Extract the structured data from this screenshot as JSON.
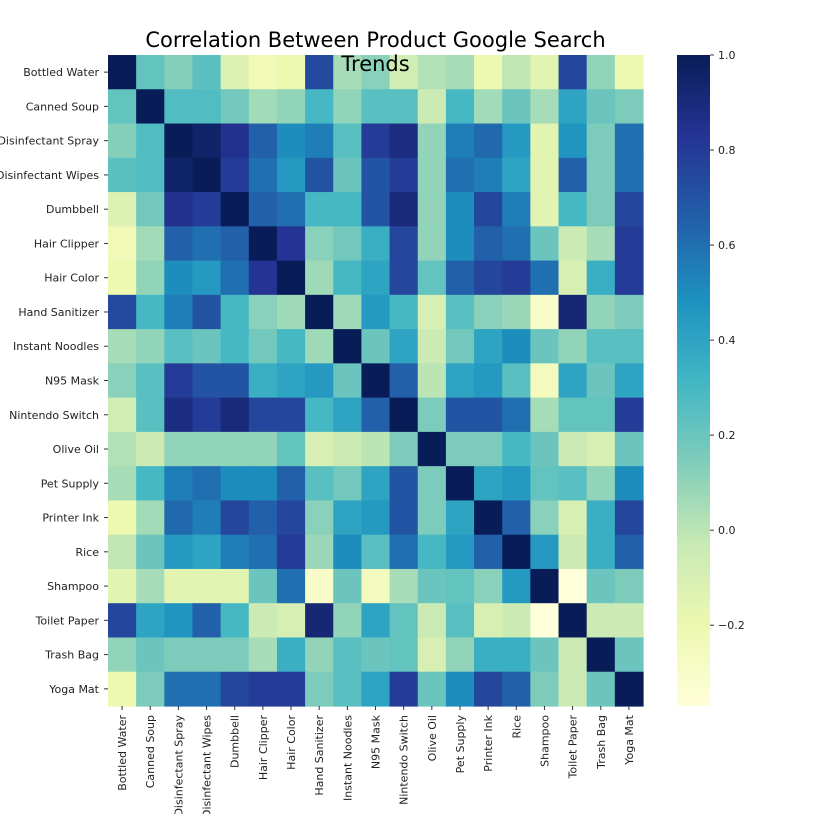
{
  "chart_data": {
    "type": "heatmap",
    "title": "Correlation Between Product Google Search Trends",
    "xlabel": "",
    "ylabel": "",
    "colormap": "YlGnBu",
    "vmin": -0.37,
    "vmax": 1.0,
    "colorbar_ticks": [
      1.0,
      0.8,
      0.6,
      0.4,
      0.2,
      0.0,
      -0.2
    ],
    "colorbar_tick_labels": [
      "1.0",
      "0.8",
      "0.6",
      "0.4",
      "0.2",
      "0.0",
      "−0.2"
    ],
    "labels": [
      "Bottled Water",
      "Canned Soup",
      "Disinfectant Spray",
      "Disinfectant Wipes",
      "Dumbbell",
      "Hair Clipper",
      "Hair Color",
      "Hand Sanitizer",
      "Instant Noodles",
      "N95 Mask",
      "Nintendo Switch",
      "Olive Oil",
      "Pet Supply",
      "Printer Ink",
      "Rice",
      "Shampoo",
      "Toilet Paper",
      "Trash Bag",
      "Yoga Mat"
    ],
    "matrix": [
      [
        1.0,
        0.22,
        0.13,
        0.24,
        -0.12,
        -0.23,
        -0.2,
        0.74,
        0.05,
        0.12,
        -0.07,
        0.02,
        0.05,
        -0.2,
        -0.01,
        -0.15,
        0.75,
        0.1,
        -0.2
      ],
      [
        0.22,
        1.0,
        0.27,
        0.27,
        0.18,
        0.06,
        0.1,
        0.3,
        0.1,
        0.25,
        0.25,
        -0.05,
        0.3,
        0.06,
        0.2,
        0.05,
        0.4,
        0.2,
        0.15
      ],
      [
        0.13,
        0.27,
        1.0,
        0.95,
        0.85,
        0.65,
        0.5,
        0.55,
        0.25,
        0.8,
        0.88,
        0.1,
        0.55,
        0.62,
        0.45,
        -0.15,
        0.47,
        0.15,
        0.6
      ],
      [
        0.24,
        0.27,
        0.95,
        1.0,
        0.8,
        0.6,
        0.45,
        0.7,
        0.2,
        0.7,
        0.8,
        0.1,
        0.6,
        0.55,
        0.4,
        -0.15,
        0.65,
        0.15,
        0.6
      ],
      [
        -0.12,
        0.18,
        0.85,
        0.8,
        1.0,
        0.65,
        0.6,
        0.3,
        0.3,
        0.7,
        0.9,
        0.1,
        0.5,
        0.75,
        0.55,
        -0.15,
        0.3,
        0.15,
        0.75
      ],
      [
        -0.23,
        0.06,
        0.65,
        0.6,
        0.65,
        1.0,
        0.83,
        0.12,
        0.18,
        0.35,
        0.75,
        0.1,
        0.5,
        0.65,
        0.6,
        0.2,
        -0.05,
        0.05,
        0.8
      ],
      [
        -0.2,
        0.1,
        0.5,
        0.45,
        0.6,
        0.83,
        1.0,
        0.07,
        0.3,
        0.4,
        0.75,
        0.22,
        0.65,
        0.75,
        0.8,
        0.6,
        -0.1,
        0.35,
        0.8
      ],
      [
        0.74,
        0.3,
        0.55,
        0.7,
        0.3,
        0.12,
        0.07,
        1.0,
        0.07,
        0.45,
        0.3,
        -0.1,
        0.25,
        0.12,
        0.08,
        -0.3,
        0.92,
        0.1,
        0.15
      ],
      [
        0.05,
        0.1,
        0.25,
        0.2,
        0.3,
        0.18,
        0.3,
        0.07,
        1.0,
        0.2,
        0.4,
        -0.05,
        0.18,
        0.4,
        0.5,
        0.2,
        0.1,
        0.25,
        0.25
      ],
      [
        0.12,
        0.25,
        0.8,
        0.7,
        0.7,
        0.35,
        0.4,
        0.45,
        0.2,
        1.0,
        0.65,
        0.0,
        0.4,
        0.45,
        0.25,
        -0.25,
        0.4,
        0.2,
        0.4
      ],
      [
        -0.07,
        0.25,
        0.88,
        0.8,
        0.9,
        0.75,
        0.75,
        0.3,
        0.4,
        0.65,
        1.0,
        0.15,
        0.7,
        0.7,
        0.6,
        0.05,
        0.22,
        0.22,
        0.8
      ],
      [
        0.02,
        -0.05,
        0.1,
        0.1,
        0.1,
        0.1,
        0.22,
        -0.1,
        -0.05,
        0.0,
        0.15,
        1.0,
        0.15,
        0.15,
        0.3,
        0.2,
        -0.05,
        -0.1,
        0.2
      ],
      [
        0.05,
        0.3,
        0.55,
        0.6,
        0.5,
        0.5,
        0.65,
        0.25,
        0.18,
        0.4,
        0.7,
        0.15,
        1.0,
        0.4,
        0.45,
        0.22,
        0.25,
        0.1,
        0.5
      ],
      [
        -0.2,
        0.06,
        0.62,
        0.55,
        0.75,
        0.65,
        0.75,
        0.12,
        0.4,
        0.45,
        0.7,
        0.15,
        0.4,
        1.0,
        0.65,
        0.12,
        -0.1,
        0.35,
        0.75
      ],
      [
        -0.01,
        0.2,
        0.45,
        0.4,
        0.55,
        0.6,
        0.8,
        0.08,
        0.5,
        0.25,
        0.6,
        0.3,
        0.45,
        0.65,
        1.0,
        0.45,
        -0.05,
        0.35,
        0.65
      ],
      [
        -0.15,
        0.05,
        -0.15,
        -0.15,
        -0.15,
        0.2,
        0.6,
        -0.3,
        0.2,
        -0.25,
        0.05,
        0.2,
        0.22,
        0.12,
        0.45,
        1.0,
        -0.37,
        0.2,
        0.15
      ],
      [
        0.75,
        0.4,
        0.47,
        0.65,
        0.3,
        -0.05,
        -0.1,
        0.92,
        0.1,
        0.4,
        0.22,
        -0.05,
        0.25,
        -0.1,
        -0.05,
        -0.37,
        1.0,
        -0.05,
        -0.05
      ],
      [
        0.1,
        0.2,
        0.15,
        0.15,
        0.15,
        0.05,
        0.35,
        0.1,
        0.25,
        0.2,
        0.22,
        -0.1,
        0.1,
        0.35,
        0.35,
        0.2,
        -0.05,
        1.0,
        0.2
      ],
      [
        -0.2,
        0.15,
        0.6,
        0.6,
        0.75,
        0.8,
        0.8,
        0.15,
        0.25,
        0.4,
        0.8,
        0.2,
        0.5,
        0.75,
        0.65,
        0.15,
        -0.05,
        0.2,
        1.0
      ]
    ]
  }
}
